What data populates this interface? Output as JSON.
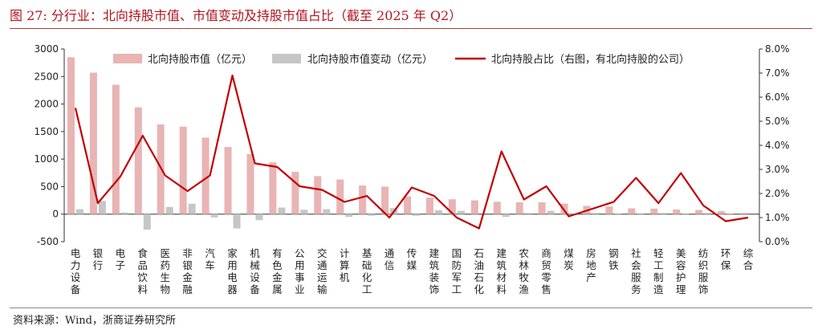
{
  "figure_title": "图 27:   分行业：北向持股市值、市值变动及持股市值占比（截至 2025 年 Q2）",
  "source": "资料来源：Wind，浙商证券研究所",
  "colors": {
    "market_value": "#e8b4b4",
    "market_value_change": "#c6c6c6",
    "ratio_line": "#c00000",
    "title": "#b4141e"
  },
  "chart_data": {
    "type": "bar",
    "categories": [
      "电力设备",
      "银行",
      "电子",
      "食品饮料",
      "医药生物",
      "非银金融",
      "汽车",
      "家用电器",
      "机械设备",
      "有色金属",
      "公用事业",
      "交通运输",
      "计算机",
      "基础化工",
      "通信",
      "传媒",
      "建筑装饰",
      "国防军工",
      "石油石化",
      "建筑材料",
      "农林牧渔",
      "商贸零售",
      "煤炭",
      "房地产",
      "钢铁",
      "社会服务",
      "轻工制造",
      "美容护理",
      "纺织服饰",
      "环保",
      "综合"
    ],
    "series": [
      {
        "name": "北向持股市值（亿元）",
        "type": "bar",
        "axis": "left",
        "values": [
          2850,
          2570,
          2350,
          1940,
          1630,
          1590,
          1390,
          1220,
          1090,
          940,
          770,
          690,
          630,
          520,
          500,
          320,
          300,
          270,
          250,
          225,
          215,
          215,
          190,
          150,
          140,
          105,
          100,
          85,
          75,
          55,
          20
        ]
      },
      {
        "name": "北向持股市值变动（亿元）",
        "type": "bar",
        "axis": "left",
        "values": [
          90,
          240,
          30,
          -280,
          130,
          190,
          -60,
          -260,
          -110,
          120,
          80,
          90,
          -50,
          -30,
          110,
          -30,
          70,
          60,
          0,
          -50,
          20,
          60,
          10,
          20,
          10,
          10,
          20,
          10,
          20,
          10,
          0
        ]
      },
      {
        "name": "北向持股占比（右图，有北向持股的公司）",
        "type": "line",
        "axis": "right",
        "values": [
          5.55,
          1.6,
          2.7,
          4.4,
          2.75,
          2.1,
          2.75,
          6.9,
          3.25,
          3.1,
          2.3,
          2.15,
          1.65,
          1.9,
          1.0,
          2.25,
          1.9,
          1.0,
          0.55,
          3.75,
          1.75,
          2.3,
          1.05,
          1.35,
          1.65,
          2.65,
          1.6,
          2.85,
          1.5,
          0.85,
          1.0
        ]
      }
    ],
    "y_left": {
      "ylim": [
        -500,
        3000
      ],
      "ticks": [
        "-500",
        "0",
        "500",
        "1000",
        "1500",
        "2000",
        "2500",
        "3000"
      ]
    },
    "y_right": {
      "ylim": [
        0,
        8
      ],
      "ticks": [
        "0.0%",
        "1.0%",
        "2.0%",
        "3.0%",
        "4.0%",
        "5.0%",
        "6.0%",
        "7.0%",
        "8.0%"
      ]
    },
    "legend_position": "top",
    "grid": false
  }
}
